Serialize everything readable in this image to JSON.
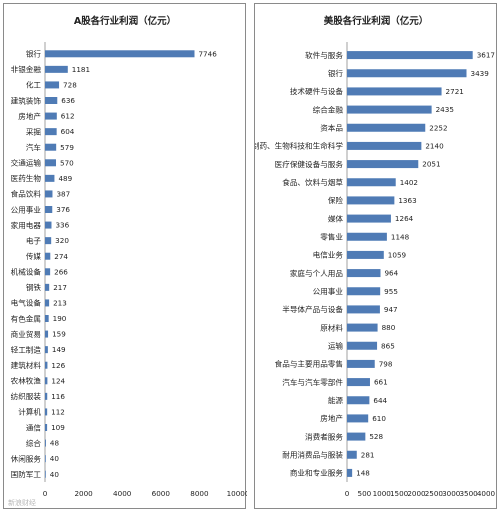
{
  "chart_data": [
    {
      "type": "bar",
      "orientation": "horizontal",
      "title": "A股各行业利润（亿元）",
      "categories": [
        "银行",
        "非银金融",
        "化工",
        "建筑装饰",
        "房地产",
        "采掘",
        "汽车",
        "交通运输",
        "医药生物",
        "食品饮料",
        "公用事业",
        "家用电器",
        "电子",
        "传媒",
        "机械设备",
        "钢铁",
        "电气设备",
        "有色金属",
        "商业贸易",
        "轻工制造",
        "建筑材料",
        "农林牧渔",
        "纺织服装",
        "计算机",
        "通信",
        "综合",
        "休闲服务",
        "国防军工"
      ],
      "values": [
        7746,
        1181,
        728,
        636,
        612,
        604,
        579,
        570,
        489,
        387,
        376,
        336,
        320,
        274,
        266,
        217,
        213,
        190,
        159,
        149,
        126,
        124,
        116,
        112,
        109,
        48,
        40,
        40
      ],
      "xlim": [
        0,
        10000
      ],
      "xticks": [
        "0",
        "2000",
        "4000",
        "6000",
        "8000",
        "10000"
      ],
      "color": "#4f7bb5"
    },
    {
      "type": "bar",
      "orientation": "horizontal",
      "title": "美股各行业利润（亿元）",
      "categories": [
        "软件与服务",
        "银行",
        "技术硬件与设备",
        "综合金融",
        "资本品",
        "制药、生物科技和生命科学",
        "医疗保健设备与服务",
        "食品、饮料与烟草",
        "保险",
        "媒体",
        "零售业",
        "电信业务",
        "家庭与个人用品",
        "公用事业",
        "半导体产品与设备",
        "原材料",
        "运输",
        "食品与主要用品零售",
        "汽车与汽车零部件",
        "能源",
        "房地产",
        "消费者服务",
        "耐用消费品与服装",
        "商业和专业服务"
      ],
      "values": [
        3617,
        3439,
        2721,
        2435,
        2252,
        2140,
        2051,
        1402,
        1363,
        1264,
        1148,
        1059,
        964,
        955,
        947,
        880,
        865,
        798,
        661,
        644,
        610,
        528,
        281,
        148
      ],
      "xlim": [
        0,
        4000
      ],
      "xticks": [
        "0",
        "500",
        "1000",
        "1500",
        "2000",
        "2500",
        "3000",
        "3500",
        "4000"
      ],
      "color": "#4f7bb5"
    }
  ],
  "watermark": "新浪财经"
}
